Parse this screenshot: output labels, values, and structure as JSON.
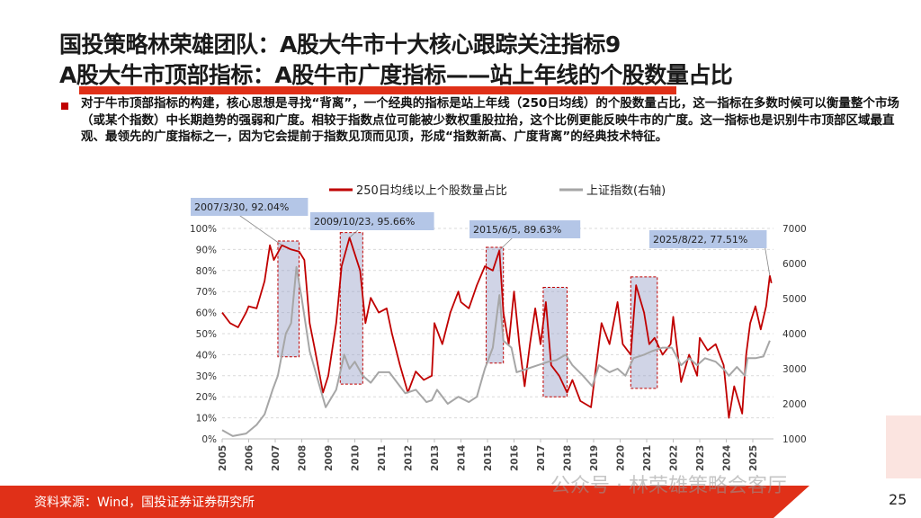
{
  "slide": {
    "title_line1": "国投策略林荣雄团队：A股大牛市十大核心跟踪关注指标9",
    "title_line2": "A股大牛市顶部指标：A股牛市广度指标——站上年线的个股数量占比",
    "body": "对于牛市顶部指标的构建，核心思想是寻找“背离”，一个经典的指标是站上年线（250日均线）的个股数量占比，这一指标在多数时候可以衡量整个市场（或某个指数）中长期趋势的强弱和广度。相较于指数点位可能被少数权重股拉抬，这个比例更能反映牛市的广度。这一指标也是识别牛市顶部区域最直观、最领先的广度指标之一，因为它会提前于指数见顶而见顶，形成“指数新高、广度背离”的经典技术特征。",
    "source": "资料来源：Wind，国投证券证券研究所",
    "page_number": "25",
    "watermark": "公众号 · 林荣雄策略会客厅",
    "accent_color": "#e03018"
  },
  "chart_data": {
    "type": "line",
    "legend_position": "top",
    "grid": "horizontal dashed",
    "x_ticks": [
      "2005",
      "2006",
      "2007",
      "2008",
      "2009",
      "2010",
      "2011",
      "2012",
      "2013",
      "2014",
      "2015",
      "2016",
      "2017",
      "2018",
      "2019",
      "2020",
      "2021",
      "2022",
      "2023",
      "2024",
      "2025"
    ],
    "y_left": {
      "range": [
        0,
        100
      ],
      "ticks": [
        "0%",
        "10%",
        "20%",
        "30%",
        "40%",
        "50%",
        "60%",
        "70%",
        "80%",
        "90%",
        "100%"
      ]
    },
    "y_right": {
      "range": [
        1000,
        7000
      ],
      "ticks": [
        "1000",
        "2000",
        "3000",
        "4000",
        "5000",
        "6000",
        "7000"
      ]
    },
    "series": [
      {
        "name": "250日均线以上个股数量占比",
        "axis": "left",
        "color": "#c00000",
        "x": [
          2005.0,
          2005.3,
          2005.6,
          2005.9,
          2006.0,
          2006.3,
          2006.6,
          2006.8,
          2006.95,
          2007.25,
          2007.6,
          2007.9,
          2008.1,
          2008.3,
          2008.5,
          2008.8,
          2009.0,
          2009.3,
          2009.5,
          2009.8,
          2010.2,
          2010.4,
          2010.6,
          2010.9,
          2011.2,
          2011.4,
          2011.7,
          2012.0,
          2012.3,
          2012.6,
          2012.9,
          2013.0,
          2013.3,
          2013.6,
          2013.9,
          2014.0,
          2014.3,
          2014.6,
          2014.9,
          2015.2,
          2015.45,
          2015.6,
          2015.8,
          2016.0,
          2016.2,
          2016.4,
          2016.6,
          2016.8,
          2017.0,
          2017.2,
          2017.4,
          2017.7,
          2018.0,
          2018.2,
          2018.5,
          2018.9,
          2019.1,
          2019.3,
          2019.6,
          2019.9,
          2020.1,
          2020.4,
          2020.6,
          2020.9,
          2021.1,
          2021.3,
          2021.6,
          2021.9,
          2022.0,
          2022.3,
          2022.6,
          2022.9,
          2023.0,
          2023.3,
          2023.6,
          2023.9,
          2024.1,
          2024.3,
          2024.6,
          2024.75,
          2024.9,
          2025.1,
          2025.3,
          2025.5,
          2025.64,
          2025.7
        ],
        "values": [
          60,
          55,
          53,
          60,
          63,
          62,
          75,
          92,
          85,
          92,
          90,
          89,
          85,
          55,
          42,
          22,
          30,
          55,
          82,
          95.66,
          80,
          55,
          67,
          60,
          62,
          50,
          35,
          22,
          32,
          28,
          30,
          55,
          45,
          60,
          70,
          65,
          62,
          73,
          82,
          80,
          89.63,
          60,
          45,
          70,
          45,
          25,
          45,
          62,
          45,
          65,
          35,
          30,
          22,
          28,
          18,
          15,
          35,
          55,
          45,
          65,
          45,
          40,
          73,
          60,
          45,
          48,
          40,
          45,
          58,
          27,
          40,
          30,
          48,
          42,
          45,
          35,
          10,
          25,
          12,
          40,
          55,
          63,
          52,
          63,
          77.51,
          74
        ]
      },
      {
        "name": "上证指数(右轴)",
        "axis": "right",
        "color": "#a6a6a6",
        "x": [
          2005.0,
          2005.4,
          2005.9,
          2006.3,
          2006.6,
          2006.9,
          2007.1,
          2007.4,
          2007.6,
          2007.8,
          2008.0,
          2008.3,
          2008.6,
          2008.9,
          2009.3,
          2009.6,
          2009.8,
          2010.0,
          2010.3,
          2010.6,
          2010.9,
          2011.3,
          2011.6,
          2011.9,
          2012.3,
          2012.7,
          2012.9,
          2013.1,
          2013.5,
          2013.9,
          2014.3,
          2014.6,
          2014.9,
          2015.2,
          2015.45,
          2015.6,
          2015.9,
          2016.1,
          2016.5,
          2016.9,
          2017.3,
          2017.6,
          2017.95,
          2018.2,
          2018.6,
          2018.95,
          2019.2,
          2019.6,
          2019.9,
          2020.2,
          2020.5,
          2020.9,
          2021.2,
          2021.6,
          2021.95,
          2022.3,
          2022.6,
          2022.9,
          2023.2,
          2023.6,
          2023.95,
          2024.1,
          2024.4,
          2024.7,
          2024.8,
          2025.1,
          2025.4,
          2025.64
        ],
        "values": [
          1250,
          1080,
          1150,
          1400,
          1700,
          2400,
          2800,
          4000,
          4300,
          5900,
          5000,
          3500,
          2700,
          1900,
          2400,
          3400,
          3000,
          3200,
          2800,
          2600,
          2900,
          2900,
          2600,
          2300,
          2400,
          2050,
          2100,
          2400,
          2000,
          2200,
          2050,
          2200,
          3000,
          3600,
          5100,
          3800,
          3600,
          2900,
          3000,
          3100,
          3200,
          3250,
          3400,
          3100,
          2800,
          2500,
          3100,
          2900,
          3000,
          2800,
          3300,
          3400,
          3500,
          3600,
          3600,
          3100,
          3300,
          3100,
          3300,
          3200,
          2950,
          2800,
          3050,
          2800,
          3300,
          3300,
          3350,
          3800
        ]
      }
    ],
    "highlight_periods": [
      {
        "x": [
          2007.1,
          2007.9
        ],
        "y": [
          39,
          94
        ]
      },
      {
        "x": [
          2009.45,
          2010.3
        ],
        "y": [
          26,
          98
        ]
      },
      {
        "x": [
          2014.95,
          2015.6
        ],
        "y": [
          36,
          91
        ]
      },
      {
        "x": [
          2017.1,
          2018.0
        ],
        "y": [
          20,
          72
        ]
      },
      {
        "x": [
          2020.4,
          2021.4
        ],
        "y": [
          24,
          77
        ]
      }
    ],
    "annotations": [
      {
        "label": "2007/3/30, 92.04%",
        "x": 2007.25,
        "y": 92.04
      },
      {
        "label": "2009/10/23, 95.66%",
        "x": 2009.8,
        "y": 95.66
      },
      {
        "label": "2015/6/5, 89.63%",
        "x": 2015.45,
        "y": 89.63
      },
      {
        "label": "2025/8/22, 77.51%",
        "x": 2025.64,
        "y": 77.51
      }
    ]
  }
}
